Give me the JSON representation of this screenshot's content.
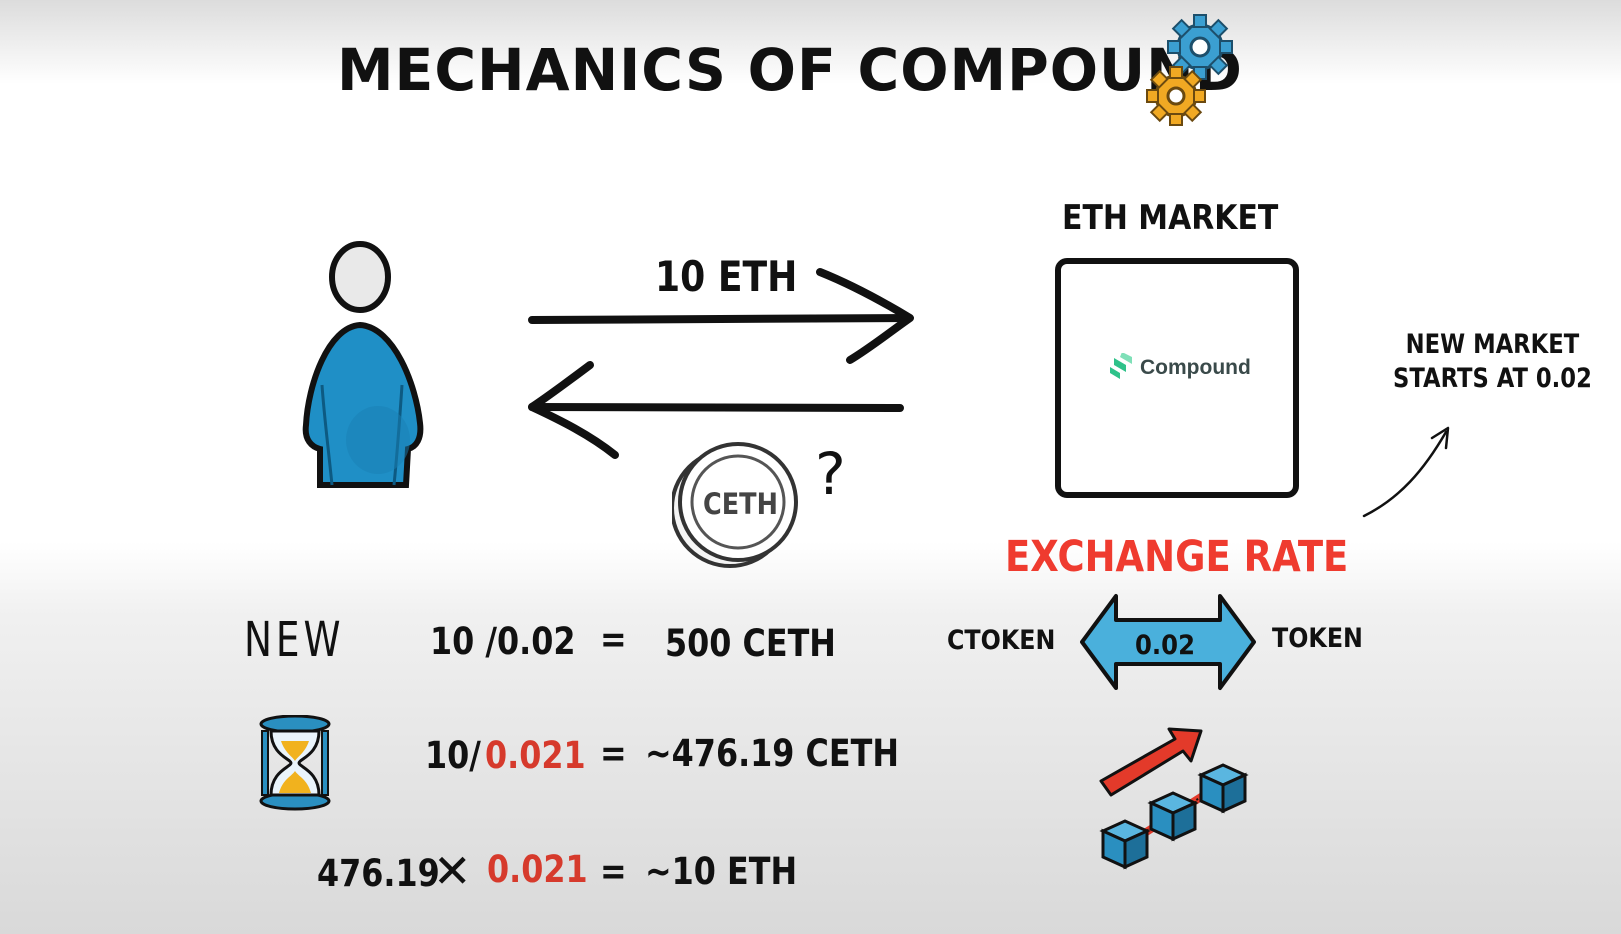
{
  "title": "MECHANICS OF COMPOUND",
  "icons": {
    "gears": "gears-icon",
    "user": "user-icon",
    "coin": "ceth-coin-icon",
    "hourglass": "hourglass-icon",
    "blockchain": "blockchain-growth-icon",
    "compound_logo": "compound-logo-icon"
  },
  "colors": {
    "exchange_rate": "#ef3b2f",
    "rate_value_red": "#d63a2c",
    "user_blue": "#1f8fc6",
    "arrow_blue": "#4ab0dc",
    "compound_green": "#2fc28a",
    "gear_blue": "#3b9fd1",
    "gear_orange": "#f1a923",
    "cube_blue": "#2a8fc0",
    "growth_arrow_red": "#e33a2a"
  },
  "flow": {
    "deposit_label": "10 ETH",
    "coin_label": "CETH",
    "question": "?"
  },
  "market": {
    "label": "ETH MARKET",
    "logo_text": "Compound",
    "note_line1": "NEW MARKET",
    "note_line2": "STARTS AT 0.02"
  },
  "exchange": {
    "label": "EXCHANGE RATE",
    "left": "CTOKEN",
    "right": "TOKEN",
    "rate": "0.02"
  },
  "equations": {
    "new_label": "NEW",
    "row1": {
      "lhs": "10 /0.02",
      "eq": "=",
      "rhs": "500 CETH"
    },
    "row2": {
      "lhs_a": "10/",
      "lhs_b": "0.021",
      "eq": "=",
      "rhs": "~476.19 CETH"
    },
    "row3": {
      "lhs_a": "476.19",
      "op": "✕",
      "lhs_b": "0.021",
      "eq": "=",
      "rhs": "~10 ETH"
    }
  }
}
